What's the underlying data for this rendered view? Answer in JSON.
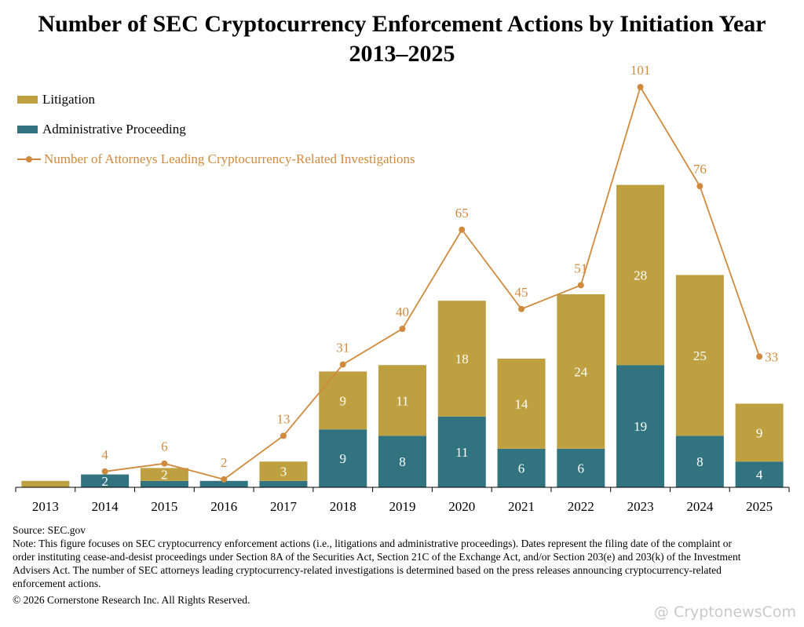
{
  "title_line1": "Number of SEC Cryptocurrency Enforcement Actions by Initiation Year",
  "title_line2": "2013–2025",
  "legend": {
    "litigation": "Litigation",
    "administrative": "Administrative Proceeding",
    "attorneys": "Number of Attorneys Leading Cryptocurrency-Related Investigations"
  },
  "colors": {
    "litigation": "#bfa040",
    "administrative": "#317480",
    "attorneys": "#d08a3e"
  },
  "chart_data": {
    "type": "bar",
    "stacked": true,
    "categories": [
      "2013",
      "2014",
      "2015",
      "2016",
      "2017",
      "2018",
      "2019",
      "2020",
      "2021",
      "2022",
      "2023",
      "2024",
      "2025"
    ],
    "series": [
      {
        "name": "Administrative Proceeding",
        "values": [
          0,
          2,
          1,
          1,
          1,
          9,
          8,
          11,
          6,
          6,
          19,
          8,
          4
        ],
        "labels": [
          "",
          "2",
          "",
          "",
          "",
          "9",
          "8",
          "11",
          "6",
          "6",
          "19",
          "8",
          "4"
        ]
      },
      {
        "name": "Litigation",
        "values": [
          1,
          0,
          2,
          0,
          3,
          9,
          11,
          18,
          14,
          24,
          28,
          25,
          9
        ],
        "labels": [
          "",
          "",
          "2",
          "",
          "3",
          "9",
          "11",
          "18",
          "14",
          "24",
          "28",
          "25",
          "9"
        ]
      }
    ],
    "line_series": {
      "name": "Number of Attorneys Leading Cryptocurrency-Related Investigations",
      "x": [
        "2014",
        "2015",
        "2016",
        "2017",
        "2018",
        "2019",
        "2020",
        "2021",
        "2022",
        "2023",
        "2024",
        "2025"
      ],
      "values": [
        4,
        6,
        2,
        13,
        31,
        40,
        65,
        45,
        51,
        101,
        76,
        33
      ]
    },
    "legend_position": "top-left",
    "grid": false
  },
  "footer": {
    "source": "Source: SEC.gov",
    "note": "Note: This figure focuses on SEC cryptocurrency enforcement actions (i.e., litigations and administrative proceedings). Dates represent the filing date of the complaint or order instituting cease-and-desist proceedings under Section 8A of the Securities Act, Section 21C of the Exchange Act, and/or Section 203(e) and 203(k) of the Investment Advisers Act. The number of SEC attorneys leading cryptocurrency-related investigations is determined based on the press releases announcing cryptocurrency-related enforcement actions.",
    "copyright": "© 2026 Cornerstone Research Inc. All Rights Reserved."
  },
  "watermark": "@ CryptonewsCom"
}
